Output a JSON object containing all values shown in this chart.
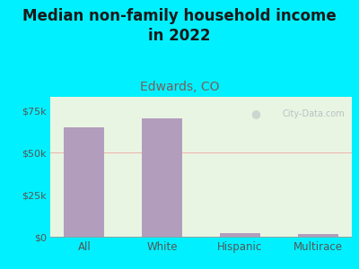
{
  "title": "Median non-family household income\nin 2022",
  "subtitle": "Edwards, CO",
  "categories": [
    "All",
    "White",
    "Hispanic",
    "Multirace"
  ],
  "values": [
    65000,
    70000,
    2000,
    1800
  ],
  "bar_color": "#b39dbd",
  "background_color": "#00f0ff",
  "plot_bg_color": "#e8f5e2",
  "yticks": [
    0,
    25000,
    50000,
    75000
  ],
  "ylim": [
    0,
    83000
  ],
  "title_fontsize": 12,
  "subtitle_fontsize": 10,
  "subtitle_color": "#7b5e57",
  "title_color": "#1a1a1a",
  "tick_color": "#555555",
  "grid_color": "#f0a0a0",
  "watermark_text": "City-Data.com",
  "watermark_color": "#b0b8c0"
}
